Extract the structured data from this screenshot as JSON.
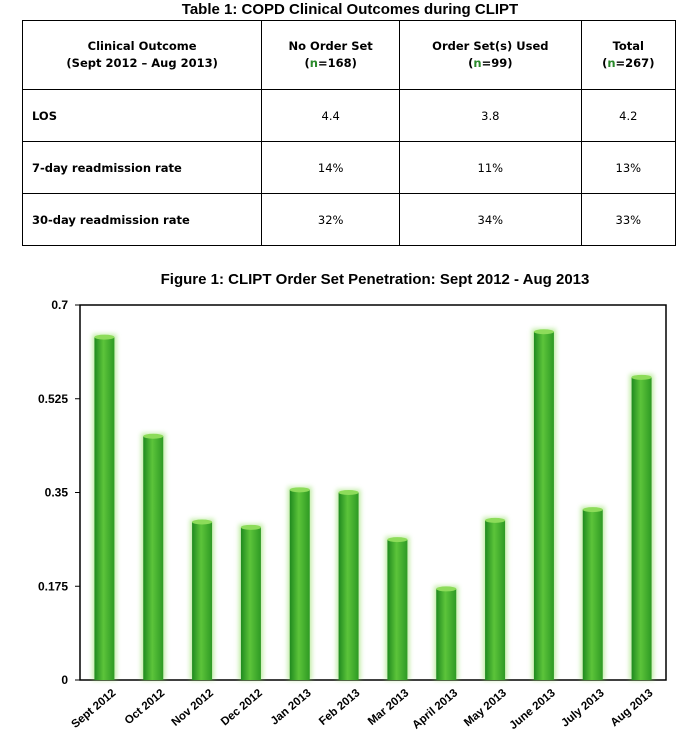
{
  "table": {
    "title": "Table 1: COPD Clinical Outcomes during CLIPT",
    "headers": [
      {
        "line1": "Clinical Outcome",
        "line2": "(Sept 2012 – Aug 2013)"
      },
      {
        "line1": "No Order Set",
        "line2_prefix": "(",
        "n_symbol": "n",
        "line2_value": "=168)"
      },
      {
        "line1": "Order Set(s) Used",
        "line2_prefix": "(",
        "n_symbol": "n",
        "line2_value": "=99)"
      },
      {
        "line1": "Total",
        "line2_prefix": "(",
        "n_symbol": "n",
        "line2_value": "=267)"
      }
    ],
    "rows": [
      {
        "label": "LOS",
        "values": [
          "4.4",
          "3.8",
          "4.2"
        ]
      },
      {
        "label": "7-day readmission rate",
        "values": [
          "14%",
          "11%",
          "13%"
        ]
      },
      {
        "label": "30-day readmission rate",
        "values": [
          "32%",
          "34%",
          "33%"
        ]
      }
    ]
  },
  "chart_data": {
    "type": "bar",
    "title": "Figure 1: CLIPT Order Set Penetration: Sept 2012 - Aug 2013",
    "categories": [
      "Sept 2012",
      "Oct 2012",
      "Nov 2012",
      "Dec 2012",
      "Jan 2013",
      "Feb 2013",
      "Mar 2013",
      "April 2013",
      "May 2013",
      "June 2013",
      "July 2013",
      "Aug 2013"
    ],
    "values": [
      0.64,
      0.455,
      0.295,
      0.285,
      0.355,
      0.35,
      0.262,
      0.17,
      0.298,
      0.65,
      0.318,
      0.565
    ],
    "yticks": [
      "0",
      "0.175",
      "0.35",
      "0.525",
      "0.7"
    ],
    "ylim": [
      0,
      0.7
    ],
    "xlabel": "",
    "ylabel": "",
    "grid": false,
    "legend": "none",
    "bar_color": "#3aa62a",
    "bar_highlight": "#8ddc5a"
  }
}
